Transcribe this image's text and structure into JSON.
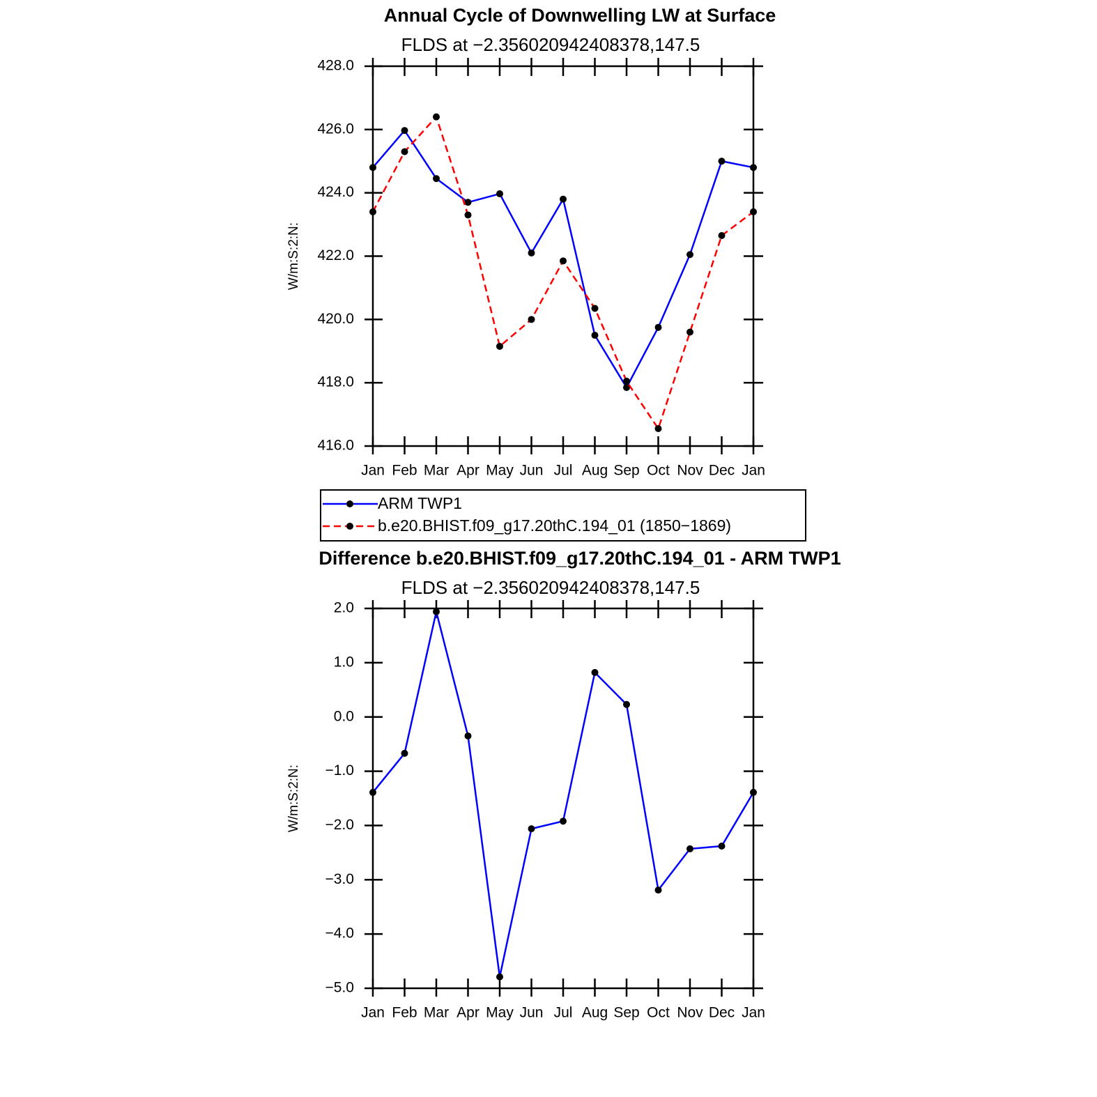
{
  "chart_data": [
    {
      "type": "line",
      "title": "Annual Cycle of Downwelling LW at Surface",
      "subtitle": "FLDS at −2.356020942408378,147.5",
      "y_label": "W/m:S:2:N:",
      "categories": [
        "Jan",
        "Feb",
        "Mar",
        "Apr",
        "May",
        "Jun",
        "Jul",
        "Aug",
        "Sep",
        "Oct",
        "Nov",
        "Dec",
        "Jan"
      ],
      "series": [
        {
          "name": "ARM TWP1",
          "color": "#0000ff",
          "dash": false,
          "values": [
            424.8,
            425.97,
            424.45,
            423.7,
            423.97,
            422.1,
            423.8,
            419.5,
            417.85,
            419.75,
            422.05,
            425.0,
            424.8
          ]
        },
        {
          "name": "b.e20.BHIST.f09_g17.20thC.194_01 (1850−1869)",
          "color": "#ff0000",
          "dash": true,
          "values": [
            423.4,
            425.3,
            426.4,
            423.3,
            419.15,
            420.0,
            421.85,
            420.35,
            418.05,
            416.55,
            419.6,
            422.65,
            423.4
          ]
        }
      ],
      "ylim": [
        416,
        428
      ],
      "yticks": [
        {
          "value": 416,
          "label": "416.0"
        },
        {
          "value": 418,
          "label": "418.0"
        },
        {
          "value": 420,
          "label": "420.0"
        },
        {
          "value": 422,
          "label": "422.0"
        },
        {
          "value": 424,
          "label": "424.0"
        },
        {
          "value": 426,
          "label": "426.0"
        },
        {
          "value": 428,
          "label": "428.0"
        }
      ],
      "legend": true
    },
    {
      "type": "line",
      "title": "Difference b.e20.BHIST.f09_g17.20thC.194_01 - ARM TWP1",
      "subtitle": "FLDS at −2.356020942408378,147.5",
      "y_label": "W/m:S:2:N:",
      "categories": [
        "Jan",
        "Feb",
        "Mar",
        "Apr",
        "May",
        "Jun",
        "Jul",
        "Aug",
        "Sep",
        "Oct",
        "Nov",
        "Dec",
        "Jan"
      ],
      "series": [
        {
          "color": "#0000ff",
          "dash": false,
          "values": [
            -1.39,
            -0.67,
            1.94,
            -0.35,
            -4.79,
            -2.06,
            -1.92,
            0.82,
            0.23,
            -3.19,
            -2.43,
            -2.38,
            -1.39
          ]
        }
      ],
      "ylim": [
        -5,
        2
      ],
      "yticks": [
        {
          "value": -5,
          "label": "−5.0"
        },
        {
          "value": -4,
          "label": "−4.0"
        },
        {
          "value": -3,
          "label": "−3.0"
        },
        {
          "value": -2,
          "label": "−2.0"
        },
        {
          "value": -1,
          "label": "−1.0"
        },
        {
          "value": 0,
          "label": "0.0"
        },
        {
          "value": 1,
          "label": "1.0"
        },
        {
          "value": 2,
          "label": "2.0"
        }
      ],
      "legend": false
    }
  ]
}
